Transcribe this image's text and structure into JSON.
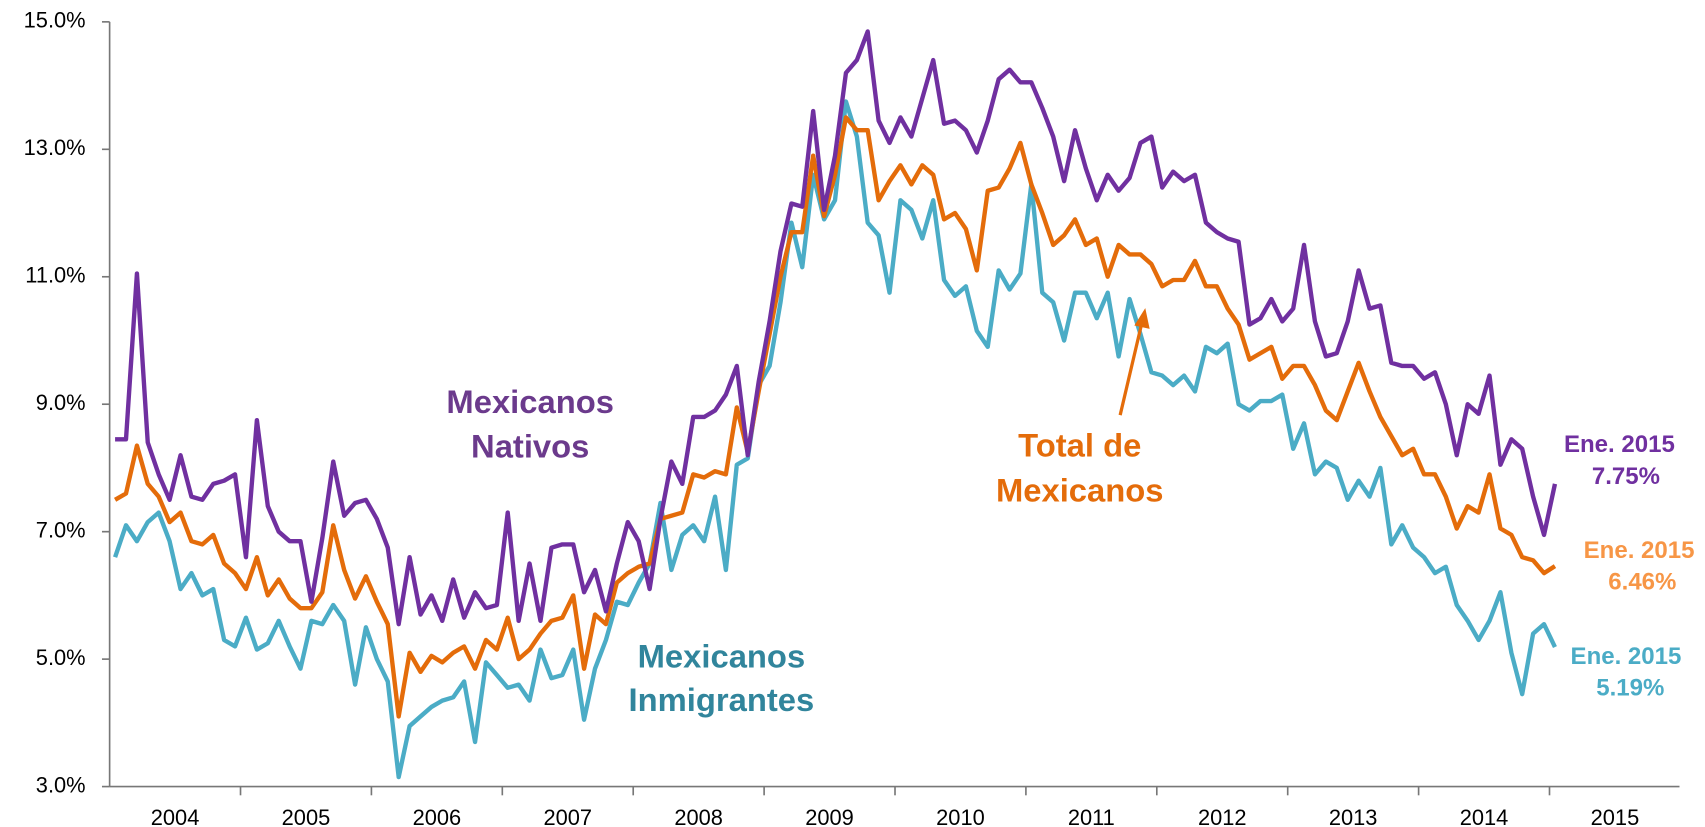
{
  "chart_data": {
    "type": "line",
    "x_labels": [
      "2004",
      "2005",
      "2006",
      "2007",
      "2008",
      "2009",
      "2010",
      "2011",
      "2012",
      "2013",
      "2014",
      "2015"
    ],
    "ylim": [
      3,
      15
    ],
    "yticks": [
      {
        "value": 3,
        "label": "3.0%"
      },
      {
        "value": 5,
        "label": "5.0%"
      },
      {
        "value": 7,
        "label": "7.0%"
      },
      {
        "value": 9,
        "label": "9.0%"
      },
      {
        "value": 11,
        "label": "11.0%"
      },
      {
        "value": 13,
        "label": "13.0%"
      },
      {
        "value": 15,
        "label": "15.0%"
      }
    ],
    "series": [
      {
        "color": "#7030a0",
        "values": [
          8.45,
          8.45,
          11.05,
          8.4,
          7.9,
          7.5,
          8.2,
          7.55,
          7.5,
          7.75,
          7.8,
          7.9,
          6.6,
          8.75,
          7.4,
          7.0,
          6.85,
          6.85,
          5.9,
          6.9,
          8.1,
          7.25,
          7.45,
          7.5,
          7.2,
          6.75,
          5.55,
          6.6,
          5.7,
          6.0,
          5.6,
          6.25,
          5.65,
          6.05,
          5.8,
          5.85,
          7.3,
          5.6,
          6.5,
          5.6,
          6.75,
          6.8,
          6.8,
          6.05,
          6.4,
          5.75,
          6.5,
          7.15,
          6.85,
          6.1,
          7.2,
          8.1,
          7.75,
          8.8,
          8.8,
          8.9,
          9.15,
          9.6,
          8.2,
          9.35,
          10.3,
          11.4,
          12.15,
          12.1,
          13.6,
          12.05,
          12.9,
          14.2,
          14.4,
          14.85,
          13.45,
          13.1,
          13.5,
          13.2,
          13.8,
          14.4,
          13.4,
          13.45,
          13.3,
          12.95,
          13.45,
          14.1,
          14.25,
          14.05,
          14.05,
          13.65,
          13.2,
          12.5,
          13.3,
          12.7,
          12.2,
          12.6,
          12.35,
          12.55,
          13.1,
          13.2,
          12.4,
          12.65,
          12.5,
          12.6,
          11.85,
          11.7,
          11.6,
          11.55,
          10.25,
          10.35,
          10.65,
          10.3,
          10.5,
          11.5,
          10.3,
          9.75,
          9.8,
          10.3,
          11.1,
          10.5,
          10.55,
          9.65,
          9.6,
          9.6,
          9.4,
          9.5,
          9.0,
          8.2,
          9.0,
          8.85,
          9.45,
          8.05,
          8.45,
          8.3,
          7.55,
          6.95,
          7.75
        ]
      },
      {
        "color": "#e46c0a",
        "values": [
          7.5,
          7.6,
          8.35,
          7.75,
          7.55,
          7.15,
          7.3,
          6.85,
          6.8,
          6.95,
          6.5,
          6.35,
          6.1,
          6.6,
          6.0,
          6.25,
          5.95,
          5.8,
          5.8,
          6.05,
          7.1,
          6.4,
          5.95,
          6.3,
          5.9,
          5.55,
          4.1,
          5.1,
          4.8,
          5.05,
          4.95,
          5.1,
          5.2,
          4.85,
          5.3,
          5.15,
          5.65,
          5.0,
          5.15,
          5.4,
          5.6,
          5.65,
          6.0,
          4.85,
          5.7,
          5.55,
          6.2,
          6.35,
          6.45,
          6.5,
          7.2,
          7.25,
          7.3,
          7.9,
          7.85,
          7.95,
          7.9,
          8.95,
          8.25,
          9.2,
          10.1,
          11.0,
          11.7,
          11.7,
          12.9,
          11.95,
          12.6,
          13.5,
          13.3,
          13.3,
          12.2,
          12.5,
          12.75,
          12.45,
          12.75,
          12.6,
          11.9,
          12.0,
          11.75,
          11.1,
          12.35,
          12.4,
          12.7,
          13.1,
          12.45,
          12.0,
          11.5,
          11.65,
          11.9,
          11.5,
          11.6,
          11.0,
          11.5,
          11.35,
          11.35,
          11.2,
          10.85,
          10.95,
          10.95,
          11.25,
          10.85,
          10.85,
          10.5,
          10.25,
          9.7,
          9.8,
          9.9,
          9.4,
          9.6,
          9.6,
          9.3,
          8.9,
          8.75,
          9.2,
          9.65,
          9.2,
          8.8,
          8.5,
          8.2,
          8.3,
          7.9,
          7.9,
          7.55,
          7.05,
          7.4,
          7.3,
          7.9,
          7.05,
          6.95,
          6.6,
          6.55,
          6.35,
          6.46
        ]
      },
      {
        "color": "#4bacc6",
        "values": [
          6.6,
          7.1,
          6.85,
          7.15,
          7.3,
          6.85,
          6.1,
          6.35,
          6.0,
          6.1,
          5.3,
          5.2,
          5.65,
          5.15,
          5.25,
          5.6,
          5.2,
          4.85,
          5.6,
          5.55,
          5.85,
          5.6,
          4.6,
          5.5,
          5.0,
          4.65,
          3.15,
          3.95,
          4.1,
          4.25,
          4.35,
          4.4,
          4.65,
          3.7,
          4.95,
          4.75,
          4.55,
          4.6,
          4.35,
          5.15,
          4.7,
          4.75,
          5.15,
          4.05,
          4.85,
          5.3,
          5.9,
          5.85,
          6.2,
          6.5,
          7.45,
          6.4,
          6.95,
          7.1,
          6.85,
          7.55,
          6.4,
          8.05,
          8.15,
          9.3,
          9.6,
          10.6,
          11.85,
          11.15,
          12.6,
          11.9,
          12.2,
          13.75,
          13.2,
          11.85,
          11.65,
          10.75,
          12.2,
          12.05,
          11.6,
          12.2,
          10.95,
          10.7,
          10.85,
          10.15,
          9.9,
          11.1,
          10.8,
          11.05,
          12.45,
          10.75,
          10.6,
          10.0,
          10.75,
          10.75,
          10.35,
          10.75,
          9.75,
          10.65,
          10.1,
          9.5,
          9.45,
          9.3,
          9.45,
          9.2,
          9.9,
          9.8,
          9.95,
          9.0,
          8.9,
          9.05,
          9.05,
          9.15,
          8.3,
          8.7,
          7.9,
          8.1,
          8.0,
          7.5,
          7.8,
          7.55,
          8.0,
          6.8,
          7.1,
          6.75,
          6.6,
          6.35,
          6.45,
          5.85,
          5.6,
          5.3,
          5.6,
          6.05,
          5.1,
          4.45,
          5.4,
          5.55,
          5.19
        ]
      }
    ],
    "annotations": [
      {
        "lines": [
          "Mexicanos",
          "Nativos"
        ]
      },
      {
        "lines": [
          "Mexicanos",
          "Inmigrantes"
        ]
      },
      {
        "lines": [
          "Total de",
          "Mexicanos"
        ]
      },
      {
        "lines": [
          "Ene. 2015",
          "7.75%"
        ]
      },
      {
        "lines": [
          "Ene. 2015",
          "6.46%"
        ]
      },
      {
        "lines": [
          "Ene. 2015",
          "5.19%"
        ]
      }
    ]
  }
}
